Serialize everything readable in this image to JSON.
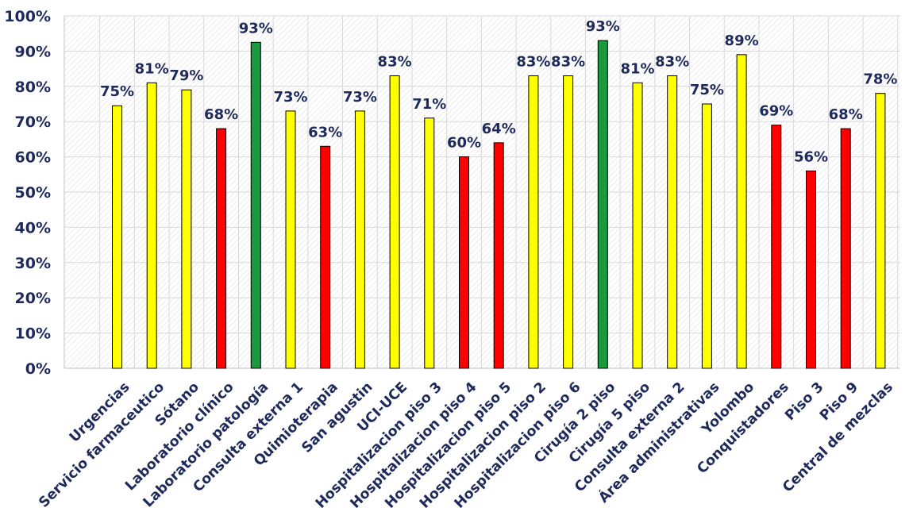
{
  "chart_data": {
    "type": "bar",
    "title": "",
    "xlabel": "",
    "ylabel": "",
    "ylim": [
      0,
      100
    ],
    "yticks": [
      0,
      10,
      20,
      30,
      40,
      50,
      60,
      70,
      80,
      90,
      100
    ],
    "ytick_labels": [
      "0%",
      "10%",
      "20%",
      "30%",
      "40%",
      "50%",
      "60%",
      "70%",
      "80%",
      "90%",
      "100%"
    ],
    "grid": true,
    "legend": "none",
    "categories": [
      "Urgencias",
      "Servicio farmaceutico",
      "Sótano",
      "Laboratorio clínico",
      "Laboratorio patología",
      "Consulta externa 1",
      "Quimioterapia",
      "San agustin",
      "UCI-UCE",
      "Hospitalizacion piso 3",
      "Hospitalizacion piso 4",
      "Hospitalizacion piso 5",
      "Hospitalizacion piso 2",
      "Hospitalizacion piso 6",
      "Cirugía 2 piso",
      "Cirugía 5 piso",
      "Consulta externa 2",
      "Área administrativas",
      "Yolombo",
      "Conquistadores",
      "Piso 3",
      "Piso 9",
      "Central de mezclas"
    ],
    "values": [
      74.5,
      81,
      79,
      68,
      92.5,
      73,
      63,
      73,
      83,
      71,
      60,
      64,
      83,
      83,
      93,
      81,
      83,
      75,
      89,
      69,
      56,
      68,
      78
    ],
    "data_labels": [
      "75%",
      "81%",
      "79%",
      "68%",
      "93%",
      "73%",
      "63%",
      "73%",
      "83%",
      "71%",
      "60%",
      "64%",
      "83%",
      "83%",
      "93%",
      "81%",
      "83%",
      "75%",
      "89%",
      "69%",
      "56%",
      "68%",
      "78%"
    ],
    "bar_status": [
      "yellow",
      "yellow",
      "yellow",
      "red",
      "green",
      "yellow",
      "red",
      "yellow",
      "yellow",
      "yellow",
      "red",
      "red",
      "yellow",
      "yellow",
      "green",
      "yellow",
      "yellow",
      "yellow",
      "yellow",
      "red",
      "red",
      "red",
      "yellow"
    ],
    "colors": {
      "yellow": "#ffff00",
      "red": "#ff0000",
      "green": "#1a9a3c",
      "text": "#1f2a5c",
      "grid": "#d9d9d9",
      "axis": "#bfbfbf"
    }
  }
}
